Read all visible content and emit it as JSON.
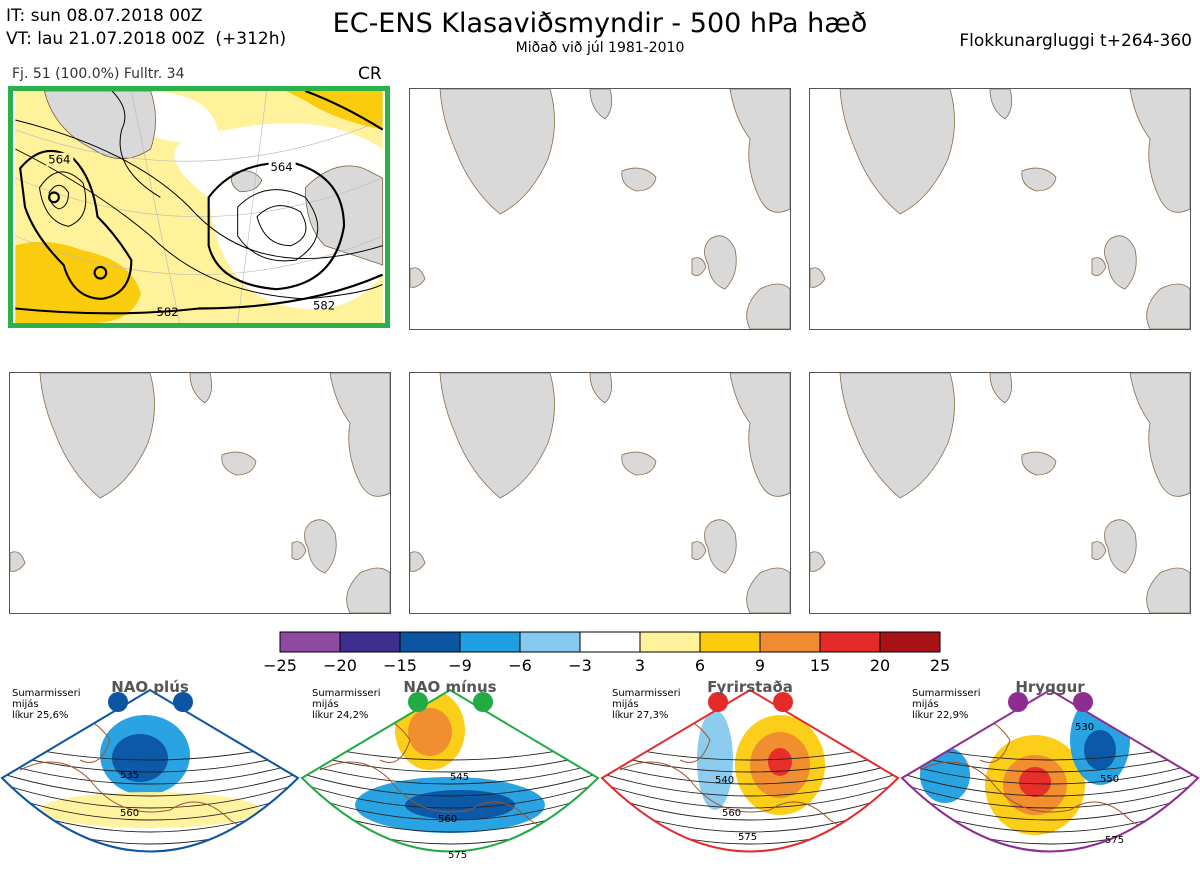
{
  "header": {
    "it": "IT: sun 08.07.2018 00Z",
    "vt": "VT: lau 21.07.2018 00Z  (+312h)",
    "title": "EC-ENS Klasaviðsmyndir - 500 hPa hæð",
    "subtitle": "Miðað við júl 1981-2010",
    "window": "Flokkunargluggi t+264-360"
  },
  "panel1": {
    "info": "Fj. 51 (100.0%)   Fulltr. 34",
    "label": "CR",
    "contours": [
      "564",
      "564",
      "582",
      "582"
    ]
  },
  "colorbar": {
    "colors": [
      "#8e4aa0",
      "#3d2e8f",
      "#0b55a3",
      "#1f9ee0",
      "#86c9ee",
      "#ffffff",
      "#fff29a",
      "#fbcb0e",
      "#f08b32",
      "#e52a2a",
      "#a81317"
    ],
    "labels": [
      "−25",
      "−20",
      "−15",
      "−9",
      "−6",
      "−3",
      "3",
      "6",
      "9",
      "15",
      "20",
      "25"
    ]
  },
  "regimes": [
    {
      "name": "NAO plús",
      "info": "Sumarmisseri\nmijás\nlíkur 25,6%",
      "color": "#0b55a3",
      "contours": [
        "535",
        "560"
      ]
    },
    {
      "name": "NAO mínus",
      "info": "Sumarmisseri\nmijás\nlíkur 24,2%",
      "color": "#22aa44",
      "contours": [
        "545",
        "560",
        "575"
      ]
    },
    {
      "name": "Fyrirstaða",
      "info": "Sumarmisseri\nmijás\nlíkur 27,3%",
      "color": "#e52a2a",
      "contours": [
        "540",
        "560",
        "575"
      ]
    },
    {
      "name": "Hryggur",
      "info": "Sumarmisseri\nmijás\nlíkur 22,9%",
      "color": "#8e2c91",
      "contours": [
        "530",
        "550",
        "575"
      ]
    }
  ]
}
